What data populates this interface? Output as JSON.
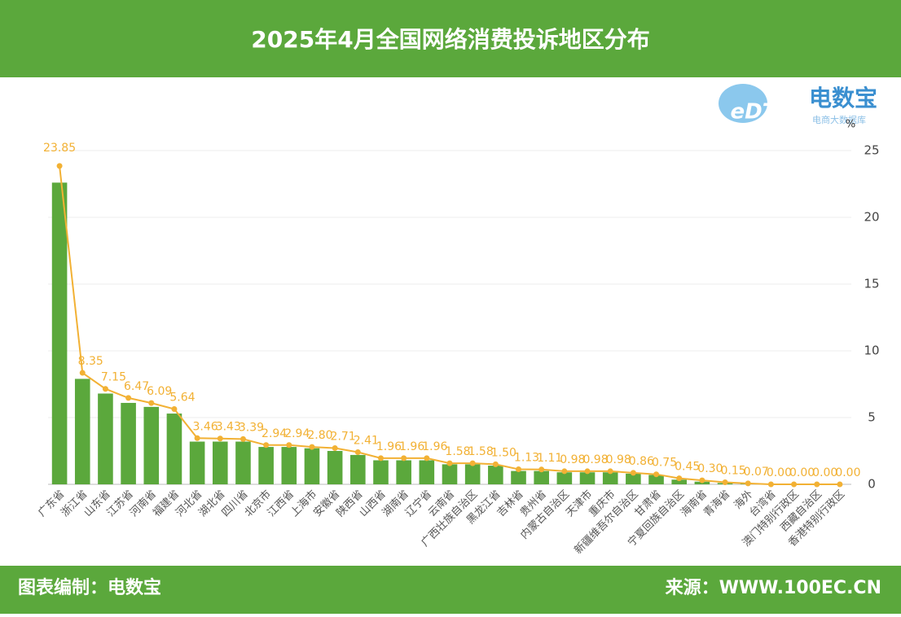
{
  "header": {
    "title": "2025年4月全国网络消费投诉地区分布"
  },
  "logo": {
    "mark": "eDT",
    "name": "电数宝",
    "tagline": "电商大数据库"
  },
  "chart_data": {
    "type": "bar",
    "y_unit": "%",
    "categories": [
      "广东省",
      "浙江省",
      "山东省",
      "江苏省",
      "河南省",
      "福建省",
      "河北省",
      "湖北省",
      "四川省",
      "北京市",
      "江西省",
      "上海市",
      "安徽省",
      "陕西省",
      "山西省",
      "湖南省",
      "辽宁省",
      "云南省",
      "广西壮族自治区",
      "黑龙江省",
      "吉林省",
      "贵州省",
      "内蒙古自治区",
      "天津市",
      "重庆市",
      "新疆维吾尔自治区",
      "甘肃省",
      "宁夏回族自治区",
      "海南省",
      "青海省",
      "海外",
      "台湾省",
      "澳门特别行政区",
      "西藏自治区",
      "香港特别行政区"
    ],
    "series": [
      {
        "type": "bar",
        "color": "#5ba83c",
        "values": [
          22.6,
          7.9,
          6.8,
          6.1,
          5.8,
          5.3,
          3.2,
          3.2,
          3.2,
          2.8,
          2.8,
          2.7,
          2.5,
          2.2,
          1.8,
          1.8,
          1.8,
          1.5,
          1.5,
          1.4,
          1.0,
          1.0,
          0.9,
          0.9,
          0.9,
          0.8,
          0.7,
          0.35,
          0.2,
          0.1,
          0.05,
          0,
          0,
          0,
          0
        ]
      },
      {
        "type": "line",
        "color": "#f2b134",
        "values": [
          23.85,
          8.35,
          7.15,
          6.47,
          6.09,
          5.64,
          3.46,
          3.43,
          3.39,
          2.94,
          2.94,
          2.8,
          2.71,
          2.41,
          1.96,
          1.96,
          1.96,
          1.58,
          1.58,
          1.5,
          1.13,
          1.11,
          0.98,
          0.98,
          0.98,
          0.86,
          0.75,
          0.45,
          0.3,
          0.15,
          0.07,
          0,
          0,
          0,
          0
        ],
        "value_labels": [
          "23.85",
          "8.35",
          "7.15",
          "6.47",
          "6.09",
          "5.64",
          "3.46",
          "3.43",
          "3.39",
          "2.94",
          "2.94",
          "2.80",
          "2.71",
          "2.41",
          "1.96",
          "1.96",
          "1.96",
          "1.58",
          "1.58",
          "1.50",
          "1.13",
          "1.11",
          "0.98",
          "0.98",
          "0.98",
          "0.86",
          "0.75",
          "0.45",
          "0.30",
          "0.15",
          "0.07",
          "0.00",
          "0.00",
          "0.00",
          "0.00"
        ]
      }
    ],
    "ylim": [
      0,
      25
    ],
    "yticks": [
      0,
      5,
      10,
      15,
      20,
      25
    ],
    "grid": true
  },
  "footer": {
    "left": "图表编制：电数宝",
    "right": "来源：WWW.100EC.CN"
  }
}
